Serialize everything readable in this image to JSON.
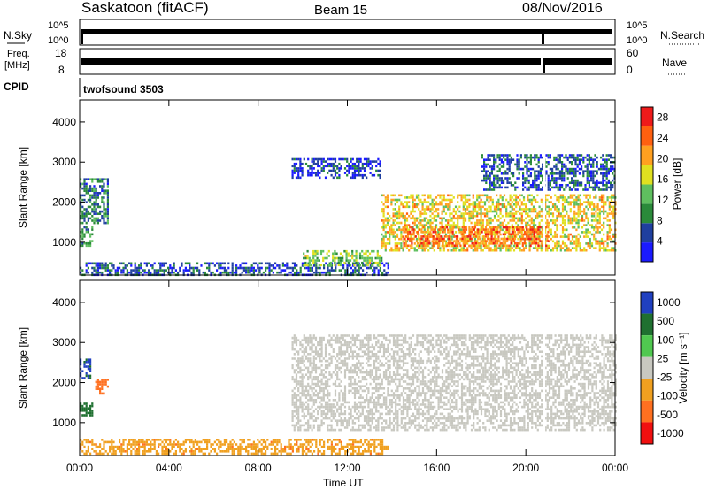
{
  "header": {
    "station": "Saskatoon (fitACF)",
    "beam": "Beam 15",
    "date": "08/Nov/2016"
  },
  "summary_panels": {
    "nsky": {
      "label": "N.Sky",
      "ticks": [
        "10^5",
        "10^0"
      ]
    },
    "nsearch": {
      "label": "N.Search",
      "ticks": [
        "10^5",
        "10^0"
      ]
    },
    "freq": {
      "label_line1": "Freq.",
      "label_line2": "[MHz]",
      "ticks": [
        "18",
        "8"
      ]
    },
    "nave": {
      "label": "Nave",
      "ticks": [
        "60",
        "0"
      ]
    },
    "cpid": {
      "label": "CPID",
      "value": "twofsound 3503"
    }
  },
  "colors": {
    "power_scale": [
      "#1a1aff",
      "#1f3f9f",
      "#2a8a3a",
      "#5fbf5f",
      "#e0e020",
      "#ffa020",
      "#ff6010",
      "#ee1a1a"
    ],
    "velocity_scale": [
      "#2040c0",
      "#1f7030",
      "#50c850",
      "#c8c8c0",
      "#f0a020",
      "#ff7020",
      "#f01010"
    ],
    "ground_scatter": "#c8c8c0"
  },
  "chart_data": [
    {
      "type": "heatmap",
      "name": "power_panel",
      "xlabel": "",
      "ylabel": "Slant Range [km]",
      "x_ticks": [
        "00:00",
        "04:00",
        "08:00",
        "12:00",
        "16:00",
        "20:00",
        "00:00"
      ],
      "y_ticks": [
        "1000",
        "2000",
        "3000",
        "4000"
      ],
      "xlim_hours": [
        0,
        24
      ],
      "ylim_km": [
        180,
        4550
      ],
      "colorbar": {
        "label": "Power [dB]",
        "ticks": [
          "4",
          "8",
          "12",
          "16",
          "20",
          "24",
          "28"
        ],
        "range": [
          0,
          30
        ]
      },
      "regions": [
        {
          "t0": 0.0,
          "t1": 1.3,
          "r0": 1500,
          "r1": 2600,
          "level": 8
        },
        {
          "t0": 0.0,
          "t1": 0.6,
          "r0": 900,
          "r1": 1400,
          "level": 10
        },
        {
          "t0": 0.0,
          "t1": 13.8,
          "r0": 200,
          "r1": 500,
          "level": 6
        },
        {
          "t0": 10.0,
          "t1": 13.5,
          "r0": 400,
          "r1": 800,
          "level": 14
        },
        {
          "t0": 9.5,
          "t1": 13.5,
          "r0": 2600,
          "r1": 3100,
          "level": 4
        },
        {
          "t0": 13.5,
          "t1": 24.0,
          "r0": 800,
          "r1": 2200,
          "level": 18
        },
        {
          "t0": 14.5,
          "t1": 21.0,
          "r0": 900,
          "r1": 1400,
          "level": 24
        },
        {
          "t0": 18.0,
          "t1": 24.0,
          "r0": 2300,
          "r1": 3200,
          "level": 6
        }
      ]
    },
    {
      "type": "heatmap",
      "name": "velocity_panel",
      "xlabel": "Time UT",
      "ylabel": "Slant Range [km]",
      "x_ticks": [
        "00:00",
        "04:00",
        "08:00",
        "12:00",
        "16:00",
        "20:00",
        "00:00"
      ],
      "y_ticks": [
        "1000",
        "2000",
        "3000",
        "4000"
      ],
      "xlim_hours": [
        0,
        24
      ],
      "ylim_km": [
        180,
        4550
      ],
      "colorbar": {
        "label": "Velocity [m s⁻¹]",
        "ticks": [
          "1000",
          "500",
          "100",
          "25",
          "-25",
          "-100",
          "-500",
          "-1000"
        ],
        "range": [
          -1000,
          1000
        ]
      },
      "regions": [
        {
          "t0": 0.0,
          "t1": 0.5,
          "r0": 2100,
          "r1": 2600,
          "velocity": 600
        },
        {
          "t0": 0.7,
          "t1": 1.3,
          "r0": 1700,
          "r1": 2100,
          "velocity": -300
        },
        {
          "t0": 0.0,
          "t1": 0.6,
          "r0": 1200,
          "r1": 1500,
          "velocity": 150
        },
        {
          "t0": 0.0,
          "t1": 13.8,
          "r0": 200,
          "r1": 600,
          "velocity": -80
        },
        {
          "t0": 9.5,
          "t1": 24.0,
          "r0": 800,
          "r1": 3200,
          "velocity": 0
        }
      ]
    }
  ]
}
